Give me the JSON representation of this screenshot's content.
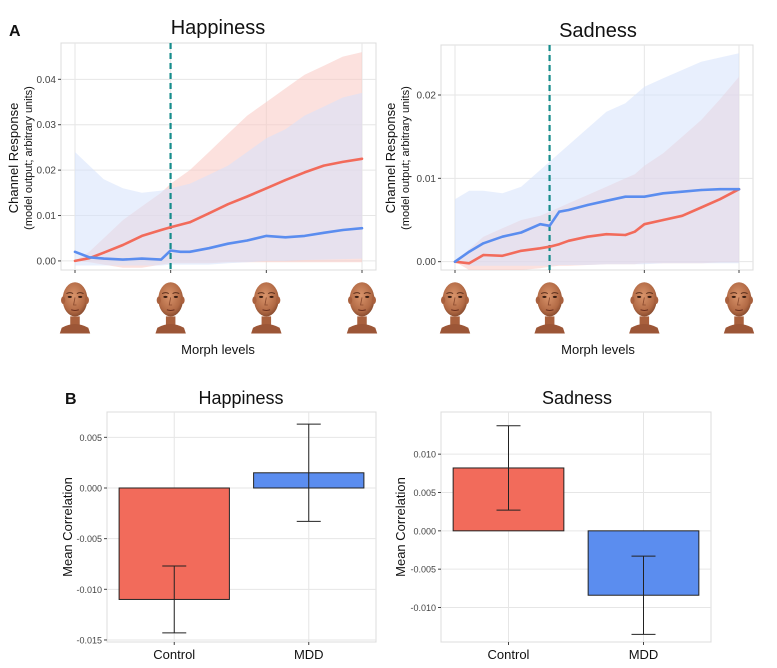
{
  "panel_labels": {
    "a": "A",
    "b": "B"
  },
  "colors": {
    "red": "#F26B5B",
    "blue": "#5B8DEF",
    "teal": "#168C8C",
    "red_band": "#F9C9C2",
    "blue_band": "#D5E2FB",
    "grid": "#E6E6E6"
  },
  "chart_data": [
    {
      "id": "A-happiness",
      "type": "line",
      "title": "Happiness",
      "xlabel": "Morph levels",
      "ylabel": "Channel Response",
      "ylabel_sub": "(model output; arbitrary units)",
      "x_tick_images": [
        "face-icon",
        "face-icon",
        "face-icon",
        "face-icon"
      ],
      "ylim": [
        -0.002,
        0.048
      ],
      "xlim": [
        0,
        1
      ],
      "y_ticks": [
        0.0,
        0.01,
        0.02,
        0.03,
        0.04
      ],
      "y_tick_labels": [
        "0.00",
        "0.01",
        "0.02",
        "0.03",
        "0.04"
      ],
      "grid": true,
      "vline_x": 0.333,
      "series": [
        {
          "color": "red",
          "x": [
            0.0,
            0.05,
            0.1,
            0.167,
            0.233,
            0.3,
            0.333,
            0.4,
            0.467,
            0.533,
            0.6,
            0.667,
            0.733,
            0.8,
            0.867,
            0.933,
            1.0
          ],
          "y": [
            0.0,
            0.0006,
            0.0018,
            0.0035,
            0.0055,
            0.0068,
            0.0074,
            0.0085,
            0.0105,
            0.0125,
            0.0142,
            0.016,
            0.0178,
            0.0195,
            0.021,
            0.0218,
            0.0225
          ],
          "lower": [
            0.0,
            -0.0003,
            -0.0008,
            -0.0015,
            -0.0015,
            -0.0008,
            -0.0005,
            -0.0005,
            -0.0005,
            -0.0003,
            -0.0003,
            -0.0003,
            -0.0003,
            -0.0003,
            -0.0003,
            -0.0003,
            -0.0003
          ],
          "upper": [
            0.0,
            0.002,
            0.005,
            0.009,
            0.012,
            0.015,
            0.017,
            0.02,
            0.024,
            0.028,
            0.032,
            0.035,
            0.038,
            0.041,
            0.043,
            0.045,
            0.046
          ]
        },
        {
          "color": "blue",
          "x": [
            0.0,
            0.05,
            0.1,
            0.167,
            0.233,
            0.3,
            0.333,
            0.367,
            0.4,
            0.467,
            0.533,
            0.6,
            0.667,
            0.733,
            0.8,
            0.867,
            0.933,
            1.0
          ],
          "y": [
            0.002,
            0.0008,
            0.0005,
            0.0003,
            0.0005,
            0.0003,
            0.0023,
            0.002,
            0.002,
            0.0028,
            0.0038,
            0.0045,
            0.0055,
            0.0052,
            0.0055,
            0.0062,
            0.0068,
            0.0072
          ],
          "lower": [
            -0.001,
            -0.001,
            -0.001,
            -0.001,
            -0.001,
            -0.001,
            -0.0008,
            -0.0008,
            -0.0008,
            -0.0008,
            -0.0005,
            -0.0003,
            0.0,
            0.0,
            0.0002,
            0.0003,
            0.0004,
            0.0005
          ],
          "upper": [
            0.024,
            0.021,
            0.018,
            0.016,
            0.015,
            0.0155,
            0.016,
            0.0165,
            0.017,
            0.019,
            0.021,
            0.024,
            0.027,
            0.029,
            0.032,
            0.034,
            0.036,
            0.037
          ]
        }
      ]
    },
    {
      "id": "A-sadness",
      "type": "line",
      "title": "Sadness",
      "xlabel": "Morph levels",
      "ylabel": "Channel Response",
      "ylabel_sub": "(model output; arbitrary units)",
      "x_tick_images": [
        "face-icon",
        "face-icon",
        "face-icon",
        "face-icon"
      ],
      "ylim": [
        -0.001,
        0.026
      ],
      "xlim": [
        0,
        1
      ],
      "y_ticks": [
        0.0,
        0.01,
        0.02
      ],
      "y_tick_labels": [
        "0.00",
        "0.01",
        "0.02"
      ],
      "grid": true,
      "vline_x": 0.333,
      "series": [
        {
          "color": "red",
          "x": [
            0.0,
            0.05,
            0.1,
            0.167,
            0.233,
            0.3,
            0.333,
            0.367,
            0.4,
            0.467,
            0.533,
            0.6,
            0.633,
            0.667,
            0.733,
            0.8,
            0.867,
            0.933,
            1.0
          ],
          "y": [
            0.0,
            -0.0002,
            0.0008,
            0.0007,
            0.0013,
            0.0016,
            0.0018,
            0.0021,
            0.0025,
            0.003,
            0.0033,
            0.0032,
            0.0036,
            0.0045,
            0.005,
            0.0055,
            0.0065,
            0.0075,
            0.0087
          ],
          "lower": [
            0.0,
            -0.001,
            -0.001,
            -0.001,
            -0.001,
            -0.0008,
            -0.0006,
            -0.0005,
            -0.0005,
            -0.0004,
            -0.0003,
            -0.0003,
            -0.0003,
            -0.0002,
            -0.0002,
            -0.0002,
            -0.0002,
            -0.0001,
            -0.0001
          ],
          "upper": [
            0.0,
            0.0015,
            0.003,
            0.004,
            0.005,
            0.0055,
            0.006,
            0.0065,
            0.007,
            0.008,
            0.009,
            0.01,
            0.0105,
            0.0115,
            0.013,
            0.015,
            0.017,
            0.0195,
            0.0222
          ]
        },
        {
          "color": "blue",
          "x": [
            0.0,
            0.05,
            0.1,
            0.167,
            0.233,
            0.3,
            0.333,
            0.367,
            0.4,
            0.467,
            0.533,
            0.6,
            0.667,
            0.733,
            0.8,
            0.867,
            0.933,
            1.0
          ],
          "y": [
            0.0,
            0.0012,
            0.0022,
            0.003,
            0.0035,
            0.0045,
            0.0043,
            0.006,
            0.0062,
            0.0068,
            0.0073,
            0.0078,
            0.0078,
            0.0082,
            0.0084,
            0.0086,
            0.0087,
            0.0087
          ],
          "lower": [
            0.0,
            -0.0005,
            -0.0005,
            -0.0005,
            -0.0005,
            -0.0005,
            -0.0005,
            -0.0004,
            -0.0004,
            -0.0004,
            -0.0003,
            -0.0003,
            -0.0003,
            -0.0002,
            -0.0002,
            -0.0002,
            -0.0002,
            -0.0002
          ],
          "upper": [
            0.0075,
            0.0085,
            0.0085,
            0.0082,
            0.009,
            0.011,
            0.012,
            0.013,
            0.014,
            0.016,
            0.018,
            0.019,
            0.021,
            0.022,
            0.023,
            0.024,
            0.0245,
            0.025
          ]
        }
      ]
    },
    {
      "id": "B-happiness",
      "type": "bar",
      "title": "Happiness",
      "xlabel": "",
      "ylabel": "Mean Correlation",
      "categories": [
        "Control",
        "MDD"
      ],
      "values": [
        -0.011,
        0.0015
      ],
      "error_low": [
        -0.0143,
        -0.0033
      ],
      "error_high": [
        -0.0077,
        0.0063
      ],
      "bar_colors": [
        "red",
        "blue"
      ],
      "ylim": [
        -0.0152,
        0.0075
      ],
      "y_ticks": [
        -0.015,
        -0.01,
        -0.005,
        0.0,
        0.005
      ],
      "y_tick_labels": [
        "-0.015",
        "-0.010",
        "-0.005",
        "0.000",
        "0.005"
      ],
      "grid": true
    },
    {
      "id": "B-sadness",
      "type": "bar",
      "title": "Sadness",
      "xlabel": "",
      "ylabel": "Mean Correlation",
      "categories": [
        "Control",
        "MDD"
      ],
      "values": [
        0.0082,
        -0.0084
      ],
      "error_low": [
        0.0027,
        -0.0135
      ],
      "error_high": [
        0.0137,
        -0.0033
      ],
      "bar_colors": [
        "red",
        "blue"
      ],
      "ylim": [
        -0.0145,
        0.0155
      ],
      "y_ticks": [
        -0.01,
        -0.005,
        0.0,
        0.005,
        0.01
      ],
      "y_tick_labels": [
        "-0.010",
        "-0.005",
        "0.000",
        "0.005",
        "0.010"
      ],
      "grid": true
    }
  ]
}
